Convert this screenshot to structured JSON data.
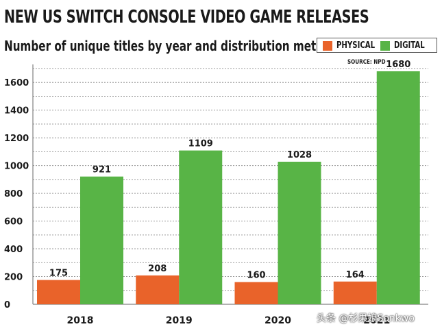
{
  "header": {
    "title": "NEW US SWITCH CONSOLE VIDEO GAME RELEASES",
    "subtitle": "Number of unique titles by year and distribution method",
    "source": "SOURCE: NPD"
  },
  "legend": [
    {
      "name": "PHYSICAL",
      "color": "#e9632a"
    },
    {
      "name": "DIGITAL",
      "color": "#58b446"
    }
  ],
  "watermark": "头条 @杉果娘Sonkwo",
  "chart_data": {
    "type": "bar",
    "title": "NEW US SWITCH CONSOLE VIDEO GAME RELEASES",
    "subtitle": "Number of unique titles by year and distribution method",
    "xlabel": "",
    "ylabel": "",
    "categories": [
      "2018",
      "2019",
      "2020",
      "2021"
    ],
    "series": [
      {
        "name": "PHYSICAL",
        "color": "#e9632a",
        "values": [
          175,
          208,
          160,
          164
        ]
      },
      {
        "name": "DIGITAL",
        "color": "#58b446",
        "values": [
          921,
          1109,
          1028,
          1680
        ]
      }
    ],
    "ylim": [
      0,
      1700
    ],
    "yticks": [
      0,
      200,
      400,
      600,
      800,
      1000,
      1200,
      1400,
      1600
    ],
    "grid": true,
    "legend_position": "top-right"
  }
}
